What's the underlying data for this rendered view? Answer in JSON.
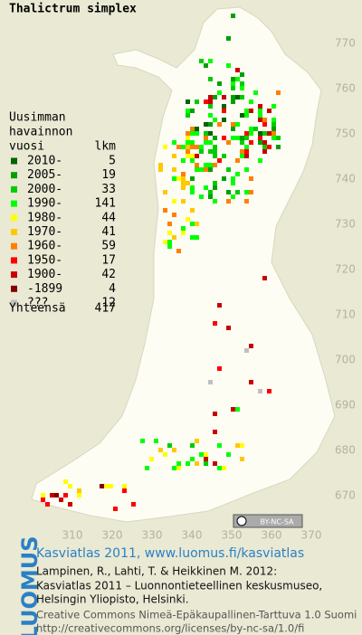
{
  "title": "Thalictrum simplex",
  "legend": {
    "heading": [
      "Uusimman",
      "havainnon",
      "vuosi"
    ],
    "count_heading": "lkm",
    "rows": [
      {
        "label": "2010-",
        "count": 5,
        "color": "#006400"
      },
      {
        "label": "2005-",
        "count": 19,
        "color": "#00a000"
      },
      {
        "label": "2000-",
        "count": 33,
        "color": "#00cc00"
      },
      {
        "label": "1990-",
        "count": 141,
        "color": "#00ff00"
      },
      {
        "label": "1980-",
        "count": 44,
        "color": "#ffff00"
      },
      {
        "label": "1970-",
        "count": 41,
        "color": "#ffc800"
      },
      {
        "label": "1960-",
        "count": 59,
        "color": "#ff8000"
      },
      {
        "label": "1950-",
        "count": 17,
        "color": "#ff0000"
      },
      {
        "label": "1900-",
        "count": 42,
        "color": "#c80000"
      },
      {
        "label": "-1899",
        "count": 4,
        "color": "#800000"
      },
      {
        "label": "???",
        "count": 12,
        "color": "#c0c0c0"
      }
    ],
    "total_label": "Yhteensä",
    "total": 417
  },
  "y_ticks": [
    770,
    760,
    750,
    740,
    730,
    720,
    710,
    700,
    690,
    680,
    670
  ],
  "x_ticks": [
    310,
    320,
    330,
    340,
    350,
    360,
    370
  ],
  "badge": "BY-NC-SA",
  "footer": {
    "logo": "LUOMUS",
    "link": "Kasviatlas 2011, www.luomus.fi/kasviatlas",
    "citation": [
      "Lampinen, R., Lahti, T. & Heikkinen M. 2012:",
      "Kasviatlas 2011 – Luonnontieteellinen keskusmuseo,",
      "Helsingin Yliopisto, Helsinki."
    ],
    "license": [
      "Creative Commons Nimeä-Epäkaupallinen-Tarttuva 1.0 Suomi",
      "http://creativecommons.org/licenses/by-nc-sa/1.0/fi"
    ]
  }
}
